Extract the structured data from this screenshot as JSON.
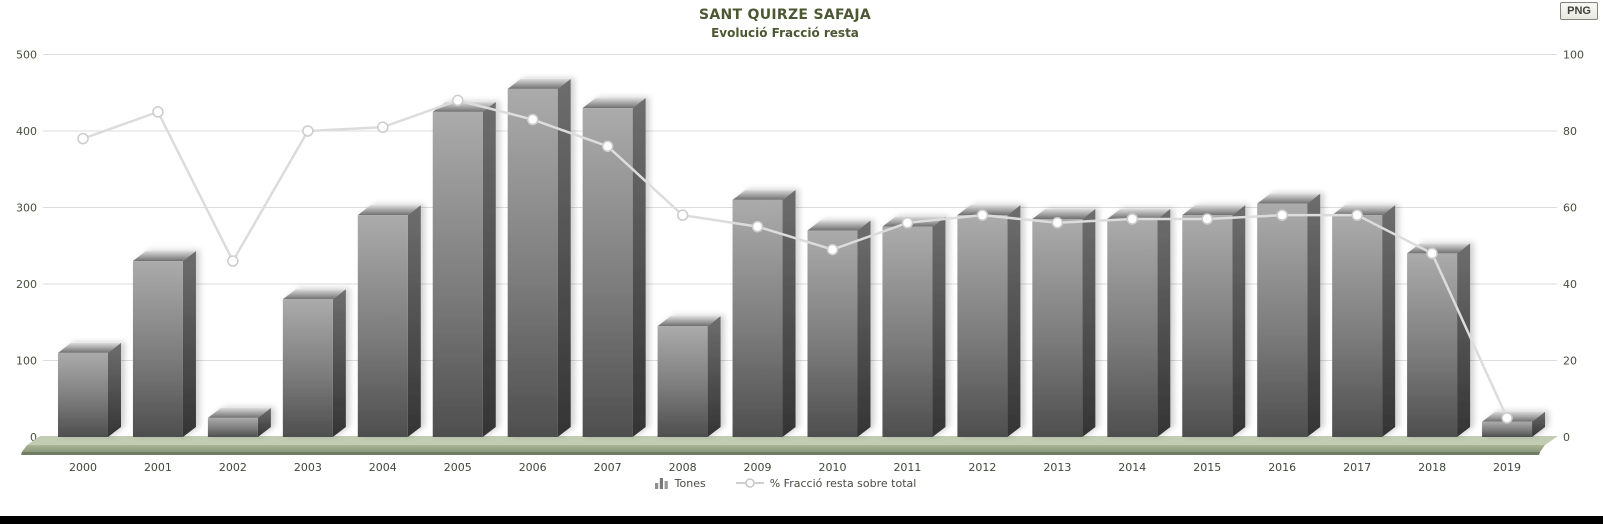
{
  "controls": {
    "png_button_label": "PNG"
  },
  "legend": {
    "bars_label": "Tones",
    "line_label": "% Fracció resta sobre total"
  },
  "chart_data": {
    "type": "bar+line",
    "title": "SANT QUIRZE SAFAJA",
    "subtitle": "Evolució Fracció resta",
    "categories": [
      2000,
      2001,
      2002,
      2003,
      2004,
      2005,
      2006,
      2007,
      2008,
      2009,
      2010,
      2011,
      2012,
      2013,
      2014,
      2015,
      2016,
      2017,
      2018,
      2019
    ],
    "series": [
      {
        "name": "Tones",
        "type": "bar",
        "axis": "left",
        "values": [
          110,
          230,
          25,
          180,
          290,
          425,
          455,
          430,
          145,
          310,
          270,
          275,
          290,
          285,
          285,
          290,
          305,
          290,
          240,
          20
        ]
      },
      {
        "name": "% Fracció resta sobre total",
        "type": "line",
        "axis": "right",
        "values": [
          78,
          85,
          46,
          80,
          81,
          88,
          83,
          76,
          58,
          55,
          49,
          56,
          58,
          56,
          57,
          57,
          58,
          58,
          48,
          5
        ]
      }
    ],
    "left_axis": {
      "ticks": [
        0,
        100,
        200,
        300,
        400,
        500
      ],
      "range": [
        0,
        500
      ]
    },
    "right_axis": {
      "ticks": [
        0,
        20,
        40,
        60,
        80,
        100
      ],
      "range": [
        0,
        100
      ]
    },
    "grid": true,
    "legend_position": "bottom",
    "colors": {
      "title_text": "#4c5733",
      "axis_text": "#474f3e",
      "category_text": "#40483a",
      "gridline": "#dcdcdc",
      "bar_front_top": "#ababab",
      "bar_front_bottom": "#4e4e4e",
      "bar_side_dark": "#343434",
      "bar_top_light": "#dcdcdc",
      "line": "#dcdcdc",
      "marker_fill": "#ffffff",
      "marker_stroke": "#cccccc",
      "platform_top": "#c2ccb2",
      "platform_front": "#aab795",
      "platform_edge": "#707d62",
      "footer": "#000000"
    }
  }
}
